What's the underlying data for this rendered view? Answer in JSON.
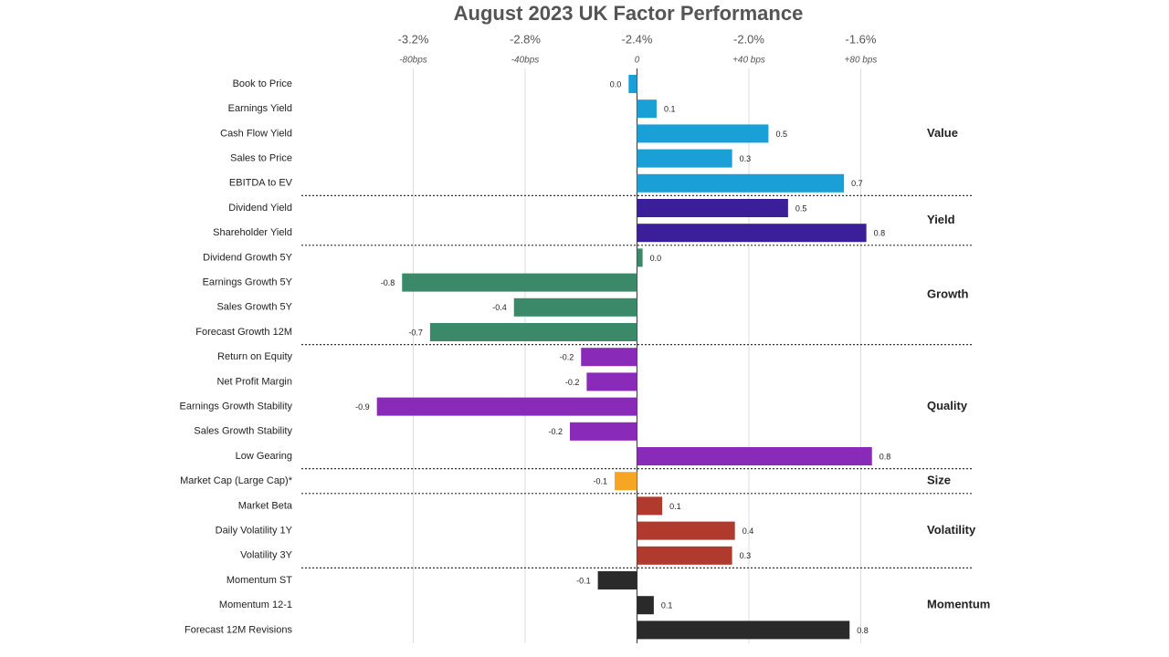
{
  "chart_data": {
    "type": "bar",
    "orientation": "horizontal",
    "title": "August 2023 UK Factor Performance",
    "xlim": [
      -1.2,
      1.2
    ],
    "xticks": [
      {
        "value": -0.8,
        "label": "-80bps"
      },
      {
        "value": -0.4,
        "label": "-40bps"
      },
      0,
      {
        "value": 0.4,
        "label": "+40 bps"
      },
      {
        "value": 0.8,
        "label": "+80 bps"
      }
    ],
    "x2lim": [
      -3.6,
      -1.2
    ],
    "x2ticks": [
      {
        "value": -3.2,
        "label": "-3.2%"
      },
      {
        "value": -2.8,
        "label": "-2.8%"
      },
      {
        "value": -2.4,
        "label": "-2.4%"
      },
      {
        "value": -2.0,
        "label": "-2.0%"
      },
      {
        "value": -1.6,
        "label": "-1.6%"
      }
    ],
    "grid": true,
    "groups": [
      {
        "name": "Value",
        "color": "#1a9fd6",
        "categories": [
          "Book to Price",
          "Earnings Yield",
          "Cash Flow Yield",
          "Sales to Price",
          "EBITDA to EV"
        ],
        "values": [
          -0.03,
          0.07,
          0.47,
          0.34,
          0.74
        ],
        "value_labels": [
          "0.0",
          "0.1",
          "0.5",
          "0.3",
          "0.7"
        ]
      },
      {
        "name": "Yield",
        "color": "#3a1e9a",
        "categories": [
          "Dividend Yield",
          "Shareholder Yield"
        ],
        "values": [
          0.54,
          0.82
        ],
        "value_labels": [
          "0.5",
          "0.8"
        ]
      },
      {
        "name": "Growth",
        "color": "#3a8a6a",
        "categories": [
          "Dividend Growth 5Y",
          "Earnings Growth 5Y",
          "Sales Growth 5Y",
          "Forecast Growth 12M"
        ],
        "values": [
          0.02,
          -0.84,
          -0.44,
          -0.74
        ],
        "value_labels": [
          "0.0",
          "-0.8",
          "-0.4",
          "-0.7"
        ]
      },
      {
        "name": "Quality",
        "color": "#8a2ab8",
        "categories": [
          "Return on Equity",
          "Net Profit Margin",
          "Earnings Growth Stability",
          "Sales Growth Stability",
          "Low Gearing"
        ],
        "values": [
          -0.2,
          -0.18,
          -0.93,
          -0.24,
          0.84
        ],
        "value_labels": [
          "-0.2",
          "-0.2",
          "-0.9",
          "-0.2",
          "0.8"
        ]
      },
      {
        "name": "Size",
        "color": "#f5a623",
        "categories": [
          "Market Cap (Large Cap)*"
        ],
        "values": [
          -0.08
        ],
        "value_labels": [
          "-0.1"
        ]
      },
      {
        "name": "Volatility",
        "color": "#b03a2e",
        "categories": [
          "Market Beta",
          "Daily Volatility 1Y",
          "Volatility 3Y"
        ],
        "values": [
          0.09,
          0.35,
          0.34
        ],
        "value_labels": [
          "0.1",
          "0.4",
          "0.3"
        ]
      },
      {
        "name": "Momentum",
        "color": "#2a2a2a",
        "categories": [
          "Momentum ST",
          "Momentum 12-1",
          "Forecast 12M Revisions"
        ],
        "values": [
          -0.14,
          0.06,
          0.76
        ],
        "value_labels": [
          "-0.1",
          "0.1",
          "0.8"
        ]
      }
    ]
  }
}
